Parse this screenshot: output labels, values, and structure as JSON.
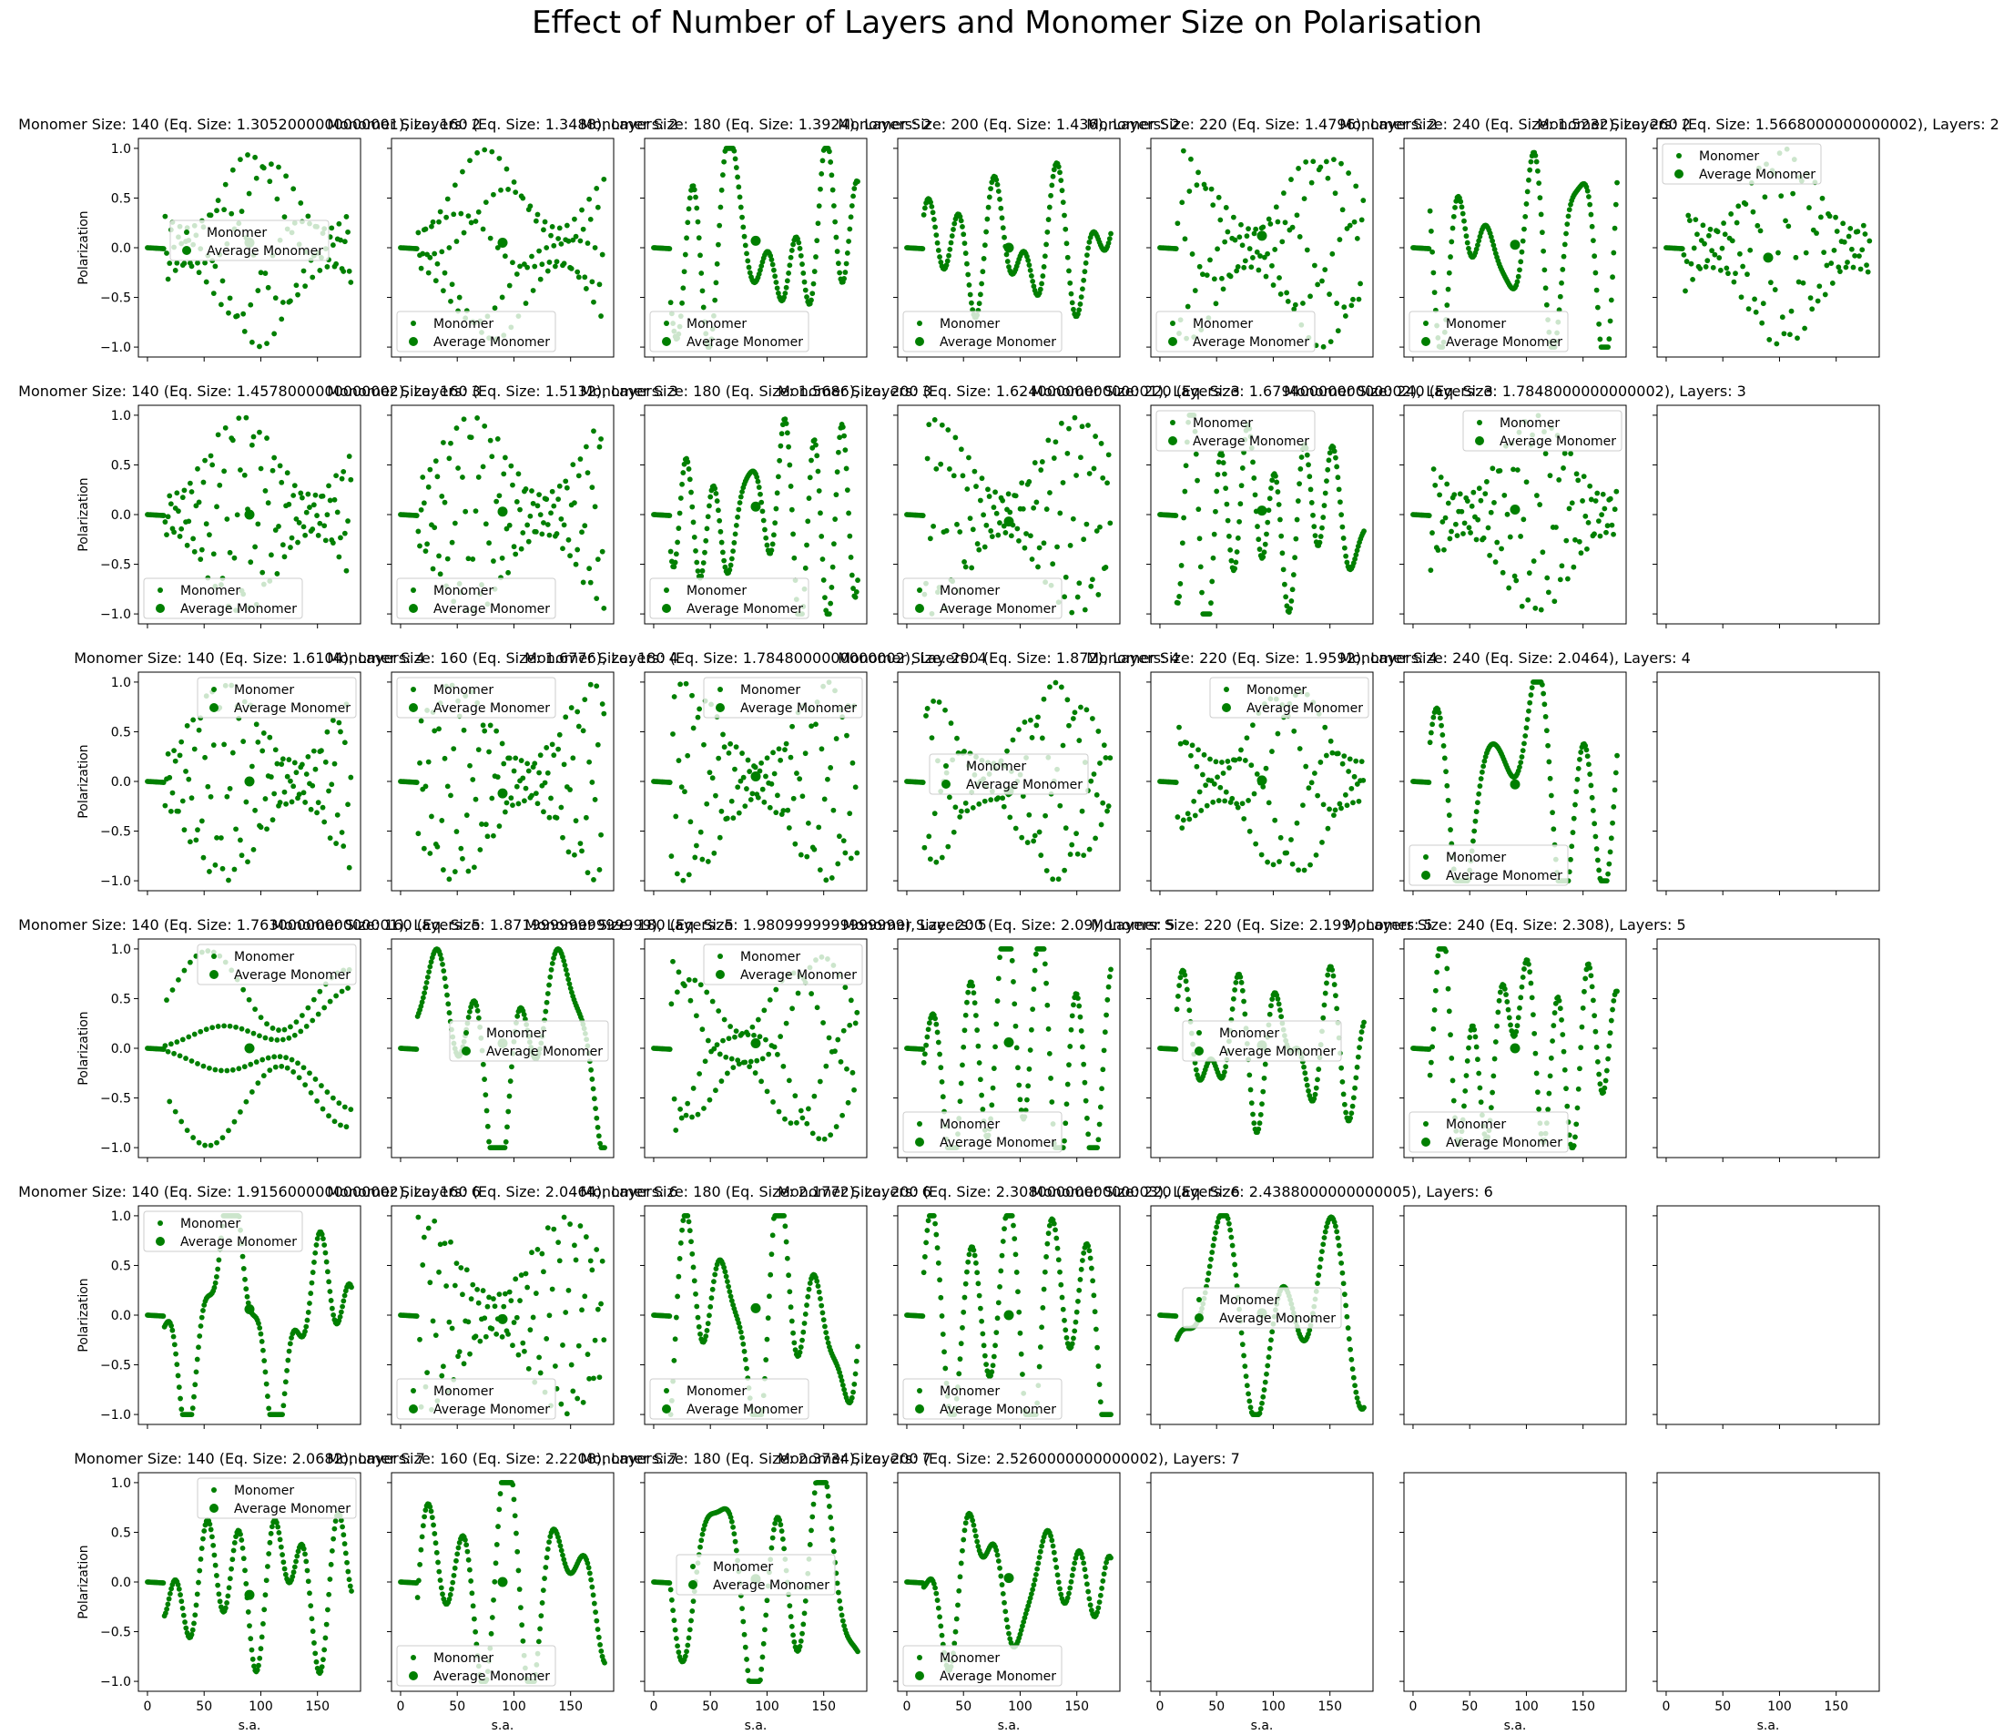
{
  "suptitle": "Effect of Number of Layers and Monomer Size on Polarisation",
  "chart_data": {
    "type": "scatter",
    "grid": "6x7 subplots",
    "xlabel": "s.a.",
    "ylabel": "Polarization",
    "xlim": [
      -8,
      188
    ],
    "ylim": [
      -1.1,
      1.1
    ],
    "xticks": [
      0,
      50,
      100,
      150
    ],
    "yticks": [
      -1.0,
      -0.5,
      0.0,
      0.5,
      1.0
    ],
    "xtick_labels": [
      "0",
      "50",
      "100",
      "150"
    ],
    "ytick_labels": [
      "−1.0",
      "−0.5",
      "0.0",
      "0.5",
      "1.0"
    ],
    "legend": [
      "Monomer",
      "Average Monomer"
    ],
    "series_color": "#007f00",
    "rows": [
      {
        "layers": 2,
        "panels": [
          {
            "title": "Monomer Size: 140 (Eq. Size: 1.3052000000000001), Layers: 2",
            "avg": [
              90,
              0.05
            ],
            "legend_pos": "center"
          },
          {
            "title": "Monomer Size: 160 (Eq. Size: 1.3488), Layers: 2",
            "avg": [
              90,
              0.05
            ],
            "legend_pos": "lower-left"
          },
          {
            "title": "Monomer Size: 180 (Eq. Size: 1.3924), Layers: 2",
            "avg": [
              90,
              0.07
            ],
            "legend_pos": "lower-left"
          },
          {
            "title": "Monomer Size: 200 (Eq. Size: 1.436), Layers: 2",
            "avg": [
              90,
              0.0
            ],
            "legend_pos": "lower-left"
          },
          {
            "title": "Monomer Size: 220 (Eq. Size: 1.4796), Layers: 2",
            "avg": [
              90,
              0.12
            ],
            "legend_pos": "lower-left"
          },
          {
            "title": "Monomer Size: 240 (Eq. Size: 1.5232), Layers: 2",
            "avg": [
              90,
              0.03
            ],
            "legend_pos": "lower-left"
          },
          {
            "title": "Monomer Size: 260 (Eq. Size: 1.5668000000000002), Layers: 2",
            "avg": [
              90,
              -0.1
            ],
            "legend_pos": "upper-left"
          }
        ]
      },
      {
        "layers": 3,
        "panels": [
          {
            "title": "Monomer Size: 140 (Eq. Size: 1.4578000000000002), Layers: 3",
            "avg": [
              90,
              0.0
            ],
            "legend_pos": "lower-left"
          },
          {
            "title": "Monomer Size: 160 (Eq. Size: 1.5132), Layers: 3",
            "avg": [
              90,
              0.03
            ],
            "legend_pos": "lower-left"
          },
          {
            "title": "Monomer Size: 180 (Eq. Size: 1.5686), Layers: 3",
            "avg": [
              90,
              0.08
            ],
            "legend_pos": "lower-left"
          },
          {
            "title": "Monomer Size: 200 (Eq. Size: 1.6240000000000001), Layers: 3",
            "avg": [
              90,
              -0.07
            ],
            "legend_pos": "lower-left"
          },
          {
            "title": "Monomer Size: 220 (Eq. Size: 1.6794000000000002), Layers: 3",
            "avg": [
              90,
              0.04
            ],
            "legend_pos": "upper-left"
          },
          {
            "title": "Monomer Size: 240 (Eq. Size: 1.7848000000000002), Layers: 3",
            "avg": [
              90,
              0.05
            ],
            "legend_pos": "upper-center"
          }
        ]
      },
      {
        "layers": 4,
        "panels": [
          {
            "title": "Monomer Size: 140 (Eq. Size: 1.6104), Layers: 4",
            "avg": [
              90,
              0.0
            ],
            "legend_pos": "upper-center"
          },
          {
            "title": "Monomer Size: 160 (Eq. Size: 1.6776), Layers: 4",
            "avg": [
              90,
              -0.12
            ],
            "legend_pos": "upper-left"
          },
          {
            "title": "Monomer Size: 180 (Eq. Size: 1.7848000000000002), Layers: 4",
            "avg": [
              90,
              0.05
            ],
            "legend_pos": "upper-center"
          },
          {
            "title": "Monomer Size: 200 (Eq. Size: 1.872), Layers: 4",
            "avg": [
              90,
              -0.1
            ],
            "legend_pos": "center"
          },
          {
            "title": "Monomer Size: 220 (Eq. Size: 1.9592), Layers: 4",
            "avg": [
              90,
              0.01
            ],
            "legend_pos": "upper-center"
          },
          {
            "title": "Monomer Size: 240 (Eq. Size: 2.0464), Layers: 4",
            "avg": [
              90,
              -0.03
            ],
            "legend_pos": "lower-left"
          }
        ]
      },
      {
        "layers": 5,
        "panels": [
          {
            "title": "Monomer Size: 140 (Eq. Size: 1.7630000000000001), Layers: 5",
            "avg": [
              90,
              0.0
            ],
            "legend_pos": "upper-center"
          },
          {
            "title": "Monomer Size: 160 (Eq. Size: 1.8719999999999999), Layers: 5",
            "avg": [
              90,
              0.05
            ],
            "legend_pos": "center-right"
          },
          {
            "title": "Monomer Size: 180 (Eq. Size: 1.9809999999999999), Layers: 5",
            "avg": [
              90,
              0.05
            ],
            "legend_pos": "upper-center"
          },
          {
            "title": "Monomer Size: 200 (Eq. Size: 2.09), Layers: 5",
            "avg": [
              90,
              0.06
            ],
            "legend_pos": "lower-left"
          },
          {
            "title": "Monomer Size: 220 (Eq. Size: 2.199), Layers: 5",
            "avg": [
              90,
              0.03
            ],
            "legend_pos": "center"
          },
          {
            "title": "Monomer Size: 240 (Eq. Size: 2.308), Layers: 5",
            "avg": [
              90,
              0.0
            ],
            "legend_pos": "lower-left"
          }
        ]
      },
      {
        "layers": 6,
        "panels": [
          {
            "title": "Monomer Size: 140 (Eq. Size: 1.9156000000000002), Layers: 6",
            "avg": [
              90,
              0.06
            ],
            "legend_pos": "upper-left"
          },
          {
            "title": "Monomer Size: 160 (Eq. Size: 2.0464), Layers: 6",
            "avg": [
              90,
              -0.04
            ],
            "legend_pos": "lower-left"
          },
          {
            "title": "Monomer Size: 180 (Eq. Size: 2.1772), Layers: 6",
            "avg": [
              90,
              0.07
            ],
            "legend_pos": "lower-left"
          },
          {
            "title": "Monomer Size: 200 (Eq. Size: 2.3080000000000003), Layers: 6",
            "avg": [
              90,
              0.0
            ],
            "legend_pos": "lower-left"
          },
          {
            "title": "Monomer Size: 220 (Eq. Size: 2.4388000000000005), Layers: 6",
            "avg": [
              90,
              0.02
            ],
            "legend_pos": "center"
          }
        ]
      },
      {
        "layers": 7,
        "panels": [
          {
            "title": "Monomer Size: 140 (Eq. Size: 2.0682), Layers: 7",
            "avg": [
              90,
              -0.13
            ],
            "legend_pos": "upper-center"
          },
          {
            "title": "Monomer Size: 160 (Eq. Size: 2.2208), Layers: 7",
            "avg": [
              90,
              0.0
            ],
            "legend_pos": "lower-left"
          },
          {
            "title": "Monomer Size: 180 (Eq. Size: 2.3734), Layers: 7",
            "avg": [
              90,
              0.03
            ],
            "legend_pos": "center"
          },
          {
            "title": "Monomer Size: 200 (Eq. Size: 2.5260000000000002), Layers: 7",
            "avg": [
              90,
              0.04
            ],
            "legend_pos": "lower-left"
          }
        ]
      }
    ]
  }
}
